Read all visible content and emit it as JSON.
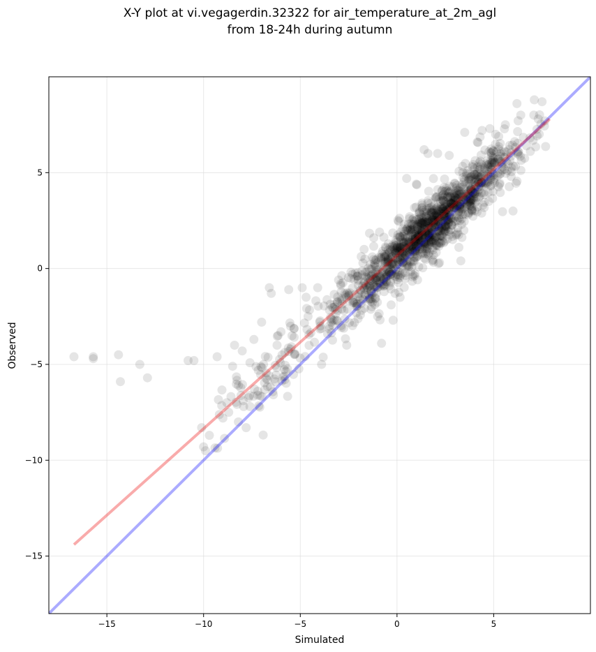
{
  "chart_data": {
    "type": "scatter",
    "title_line1": "X-Y plot at vi.vegagerdin.32322 for air_temperature_at_2m_agl",
    "title_line2": "from 18-24h during autumn",
    "xlabel": "Simulated",
    "ylabel": "Observed",
    "xlim": [
      -18,
      10
    ],
    "ylim": [
      -18,
      10
    ],
    "xticks": [
      -15,
      -10,
      -5,
      0,
      5
    ],
    "yticks": [
      -15,
      -10,
      -5,
      0,
      5
    ],
    "xtick_labels": [
      "−15",
      "−10",
      "−5",
      "0",
      "5"
    ],
    "ytick_labels": [
      "−15",
      "−10",
      "−5",
      "0",
      "5"
    ],
    "grid": true,
    "point_color": "#000000",
    "identity_line": {
      "color": "#0000ff",
      "x": [
        -18,
        10
      ],
      "y": [
        -18,
        10
      ]
    },
    "fit_line": {
      "color": "#ee0000",
      "x": [
        -16.7,
        7.9
      ],
      "y": [
        -14.4,
        7.8
      ]
    },
    "outlier_points": [
      [
        -16.7,
        -4.6
      ],
      [
        -15.7,
        -4.6
      ],
      [
        -15.7,
        -4.7
      ],
      [
        -14.4,
        -4.5
      ],
      [
        -14.3,
        -5.9
      ],
      [
        -13.3,
        -5.0
      ],
      [
        -12.9,
        -5.7
      ],
      [
        -10.8,
        -4.8
      ],
      [
        -10.5,
        -4.8
      ],
      [
        -10.1,
        -8.3
      ],
      [
        -10.0,
        -9.3
      ],
      [
        -9.9,
        -9.5
      ],
      [
        -9.7,
        -8.7
      ],
      [
        -9.3,
        -4.6
      ],
      [
        -9.0,
        -7.8
      ],
      [
        -8.7,
        -7.5
      ],
      [
        -8.5,
        -5.1
      ],
      [
        -8.4,
        -4.0
      ],
      [
        -8.2,
        -8.0
      ],
      [
        -8.0,
        -4.3
      ],
      [
        -7.8,
        -8.3
      ],
      [
        -7.6,
        -7.2
      ],
      [
        -7.4,
        -3.7
      ],
      [
        -7.0,
        -2.8
      ],
      [
        -6.6,
        -1.0
      ],
      [
        -6.5,
        -1.3
      ],
      [
        -6.2,
        -4.0
      ],
      [
        -6.0,
        -3.3
      ],
      [
        -5.8,
        -5.8
      ],
      [
        -5.6,
        -1.1
      ],
      [
        -5.5,
        -4.2
      ],
      [
        -7.2,
        -6.4
      ],
      [
        -6.9,
        -5.0
      ],
      [
        -8.8,
        -7.0
      ],
      [
        -4.7,
        -1.5
      ],
      [
        -4.6,
        -2.5
      ],
      [
        -4.1,
        -1.0
      ],
      [
        -3.9,
        -5.0
      ],
      [
        -3.5,
        -3.0
      ],
      [
        -2.6,
        -4.0
      ],
      [
        -2.3,
        -0.3
      ],
      [
        -1.0,
        -2.5
      ],
      [
        -0.8,
        -3.9
      ],
      [
        -0.3,
        -1.9
      ],
      [
        -0.2,
        -2.7
      ],
      [
        0.5,
        4.7
      ],
      [
        1.0,
        4.4
      ],
      [
        1.4,
        6.2
      ],
      [
        1.6,
        6.0
      ],
      [
        2.1,
        6.0
      ],
      [
        2.7,
        5.9
      ],
      [
        3.3,
        0.4
      ],
      [
        3.5,
        7.1
      ],
      [
        4.4,
        7.2
      ],
      [
        5.1,
        7.0
      ],
      [
        6.2,
        8.6
      ],
      [
        6.4,
        8.0
      ],
      [
        7.1,
        8.8
      ],
      [
        7.5,
        8.7
      ],
      [
        7.3,
        7.8
      ],
      [
        2.2,
        0.3
      ],
      [
        3.2,
        1.1
      ],
      [
        -1.7,
        1.0
      ],
      [
        -1.2,
        1.6
      ],
      [
        -0.9,
        1.9
      ],
      [
        4.8,
        7.3
      ],
      [
        5.9,
        4.8
      ],
      [
        6.0,
        3.0
      ],
      [
        6.7,
        6.4
      ],
      [
        5.6,
        7.5
      ]
    ]
  }
}
